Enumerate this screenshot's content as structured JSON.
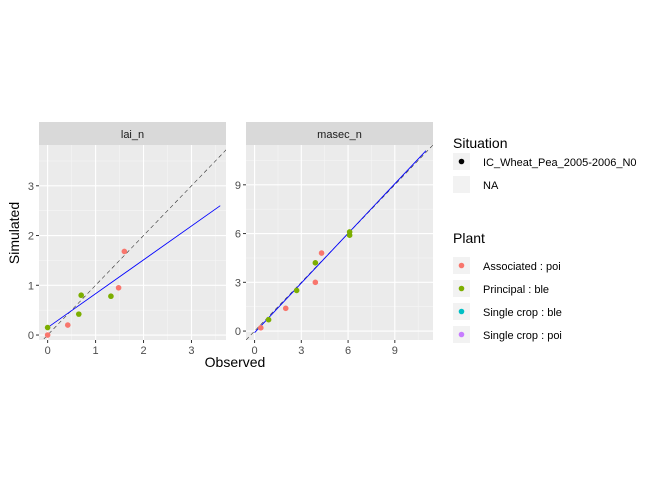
{
  "chart_data": {
    "type": "scatter",
    "xlabel": "Observed",
    "ylabel": "Simulated",
    "colors": {
      "Associated : poi": "#f8766d",
      "Principal : ble": "#7cae00",
      "Single crop : ble": "#00bfc4",
      "Single crop : poi": "#c77cff",
      "regression": "#0000ff",
      "identity": "#333333"
    },
    "panels": [
      {
        "strip": "lai_n",
        "xlim": [
          -0.18,
          3.72
        ],
        "ylim": [
          -0.1,
          3.82
        ],
        "xticks": [
          0,
          1,
          2,
          3
        ],
        "yticks": [
          0,
          1,
          2,
          3
        ],
        "points": [
          {
            "x": 0.0,
            "y": 0.0,
            "plant": "Associated : poi"
          },
          {
            "x": 0.42,
            "y": 0.2,
            "plant": "Associated : poi"
          },
          {
            "x": 1.48,
            "y": 0.95,
            "plant": "Associated : poi"
          },
          {
            "x": 1.6,
            "y": 1.68,
            "plant": "Associated : poi"
          },
          {
            "x": 0.0,
            "y": 0.15,
            "plant": "Principal : ble"
          },
          {
            "x": 0.65,
            "y": 0.42,
            "plant": "Principal : ble"
          },
          {
            "x": 0.7,
            "y": 0.8,
            "plant": "Principal : ble"
          },
          {
            "x": 1.32,
            "y": 0.78,
            "plant": "Principal : ble"
          }
        ],
        "regression": {
          "x": [
            0.0,
            3.6
          ],
          "y": [
            0.15,
            2.6
          ]
        }
      },
      {
        "strip": "masec_n",
        "xlim": [
          -0.55,
          11.45
        ],
        "ylim": [
          -0.55,
          11.45
        ],
        "xticks": [
          0,
          3,
          6,
          9
        ],
        "yticks": [
          0,
          3,
          6,
          9
        ],
        "points": [
          {
            "x": 0.4,
            "y": 0.2,
            "plant": "Associated : poi"
          },
          {
            "x": 2.0,
            "y": 1.4,
            "plant": "Associated : poi"
          },
          {
            "x": 3.9,
            "y": 3.0,
            "plant": "Associated : poi"
          },
          {
            "x": 4.3,
            "y": 4.8,
            "plant": "Associated : poi"
          },
          {
            "x": 0.9,
            "y": 0.7,
            "plant": "Principal : ble"
          },
          {
            "x": 2.7,
            "y": 2.5,
            "plant": "Principal : ble"
          },
          {
            "x": 3.9,
            "y": 4.2,
            "plant": "Principal : ble"
          },
          {
            "x": 6.1,
            "y": 5.9,
            "plant": "Principal : ble"
          },
          {
            "x": 6.1,
            "y": 6.1,
            "plant": "Principal : ble"
          }
        ],
        "regression": {
          "x": [
            0.0,
            11.0
          ],
          "y": [
            -0.1,
            11.1
          ]
        }
      }
    ],
    "legend": {
      "placement": "right",
      "situation_title": "Situation",
      "situation_items": [
        {
          "label": "IC_Wheat_Pea_2005-2006_N0"
        },
        {
          "label": "NA"
        }
      ],
      "plant_title": "Plant",
      "plant_items": [
        {
          "label": "Associated : poi",
          "color": "#f8766d"
        },
        {
          "label": "Principal : ble",
          "color": "#7cae00"
        },
        {
          "label": "Single crop : ble",
          "color": "#00bfc4"
        },
        {
          "label": "Single crop : poi",
          "color": "#c77cff"
        }
      ]
    }
  }
}
